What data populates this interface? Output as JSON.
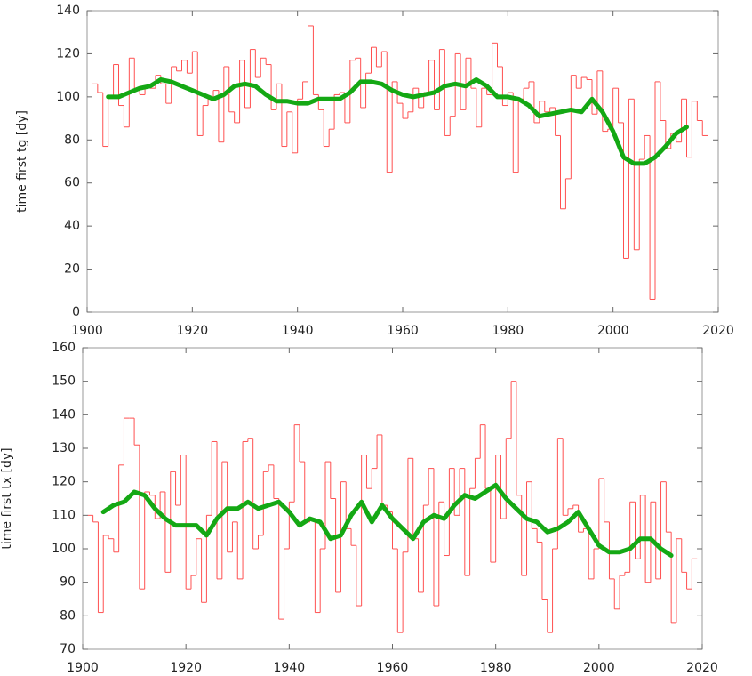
{
  "chart_data": [
    {
      "type": "line",
      "ylabel": "time first tg [dy]",
      "xlim": [
        1900,
        2020
      ],
      "xticks": [
        1900,
        1920,
        1940,
        1960,
        1980,
        2000,
        2020
      ],
      "ylim": [
        0,
        140
      ],
      "yticks": [
        0,
        20,
        40,
        60,
        80,
        100,
        120,
        140
      ],
      "series": [
        {
          "color": "#ff5050",
          "step": true,
          "x": [
            1901,
            1902,
            1903,
            1904,
            1905,
            1906,
            1907,
            1908,
            1909,
            1910,
            1911,
            1912,
            1913,
            1914,
            1915,
            1916,
            1917,
            1918,
            1919,
            1920,
            1921,
            1922,
            1923,
            1924,
            1925,
            1926,
            1927,
            1928,
            1929,
            1930,
            1931,
            1932,
            1933,
            1934,
            1935,
            1936,
            1937,
            1938,
            1939,
            1940,
            1941,
            1942,
            1943,
            1944,
            1945,
            1946,
            1947,
            1948,
            1949,
            1950,
            1951,
            1952,
            1953,
            1954,
            1955,
            1956,
            1957,
            1958,
            1959,
            1960,
            1961,
            1962,
            1963,
            1964,
            1965,
            1966,
            1967,
            1968,
            1969,
            1970,
            1971,
            1972,
            1973,
            1974,
            1975,
            1976,
            1977,
            1978,
            1979,
            1980,
            1981,
            1982,
            1983,
            1984,
            1985,
            1986,
            1987,
            1988,
            1989,
            1990,
            1991,
            1992,
            1993,
            1994,
            1995,
            1996,
            1997,
            1998,
            1999,
            2000,
            2001,
            2002,
            2003,
            2004,
            2005,
            2006,
            2007,
            2008,
            2009,
            2010,
            2011,
            2012,
            2013,
            2014,
            2015,
            2016,
            2017
          ],
          "values": [
            106,
            102,
            77,
            100,
            115,
            96,
            86,
            118,
            104,
            101,
            105,
            104,
            110,
            106,
            97,
            114,
            112,
            117,
            111,
            121,
            82,
            96,
            99,
            103,
            79,
            114,
            93,
            88,
            117,
            95,
            122,
            109,
            118,
            115,
            94,
            106,
            77,
            93,
            74,
            99,
            107,
            133,
            101,
            94,
            77,
            85,
            101,
            102,
            88,
            117,
            118,
            95,
            111,
            123,
            114,
            121,
            65,
            107,
            97,
            90,
            93,
            104,
            95,
            102,
            117,
            94,
            122,
            82,
            91,
            120,
            94,
            118,
            104,
            86,
            104,
            101,
            125,
            114,
            96,
            102,
            65,
            99,
            104,
            107,
            88,
            98,
            93,
            95,
            82,
            48,
            62,
            110,
            104,
            109,
            108,
            92,
            112,
            84,
            85,
            104,
            88,
            25,
            99,
            29,
            71,
            82,
            6,
            107,
            89,
            76,
            83,
            79,
            99,
            72,
            98,
            89,
            82
          ]
        },
        {
          "color": "#14a814",
          "x": [
            1904,
            1906,
            1908,
            1910,
            1912,
            1914,
            1916,
            1918,
            1920,
            1922,
            1924,
            1926,
            1928,
            1930,
            1932,
            1934,
            1936,
            1938,
            1940,
            1942,
            1944,
            1946,
            1948,
            1950,
            1952,
            1954,
            1956,
            1958,
            1960,
            1962,
            1964,
            1966,
            1968,
            1970,
            1972,
            1974,
            1976,
            1978,
            1980,
            1982,
            1984,
            1986,
            1988,
            1990,
            1992,
            1994,
            1996,
            1998,
            2000,
            2002,
            2004,
            2006,
            2008,
            2010,
            2012,
            2014
          ],
          "values": [
            100,
            100,
            102,
            104,
            105,
            108,
            107,
            105,
            103,
            101,
            99,
            101,
            105,
            106,
            105,
            101,
            98,
            98,
            97,
            97,
            99,
            99,
            99,
            102,
            107,
            107,
            106,
            103,
            101,
            100,
            101,
            102,
            105,
            106,
            105,
            108,
            105,
            100,
            100,
            99,
            96,
            91,
            92,
            93,
            94,
            93,
            99,
            93,
            84,
            72,
            69,
            69,
            72,
            77,
            83,
            86
          ]
        }
      ]
    },
    {
      "type": "line",
      "ylabel": "time first tx [dy]",
      "xlim": [
        1900,
        2020
      ],
      "xticks": [
        1900,
        1920,
        1940,
        1960,
        1980,
        2000,
        2020
      ],
      "ylim": [
        70,
        160
      ],
      "yticks": [
        70,
        80,
        90,
        100,
        110,
        120,
        130,
        140,
        150,
        160
      ],
      "series": [
        {
          "color": "#ff5050",
          "step": true,
          "x": [
            1901,
            1902,
            1903,
            1904,
            1905,
            1906,
            1907,
            1908,
            1909,
            1910,
            1911,
            1912,
            1913,
            1914,
            1915,
            1916,
            1917,
            1918,
            1919,
            1920,
            1921,
            1922,
            1923,
            1924,
            1925,
            1926,
            1927,
            1928,
            1929,
            1930,
            1931,
            1932,
            1933,
            1934,
            1935,
            1936,
            1937,
            1938,
            1939,
            1940,
            1941,
            1942,
            1943,
            1944,
            1945,
            1946,
            1947,
            1948,
            1949,
            1950,
            1951,
            1952,
            1953,
            1954,
            1955,
            1956,
            1957,
            1958,
            1959,
            1960,
            1961,
            1962,
            1963,
            1964,
            1965,
            1966,
            1967,
            1968,
            1969,
            1970,
            1971,
            1972,
            1973,
            1974,
            1975,
            1976,
            1977,
            1978,
            1979,
            1980,
            1981,
            1982,
            1983,
            1984,
            1985,
            1986,
            1987,
            1988,
            1989,
            1990,
            1991,
            1992,
            1993,
            1994,
            1995,
            1996,
            1997,
            1998,
            1999,
            2000,
            2001,
            2002,
            2003,
            2004,
            2005,
            2006,
            2007,
            2008,
            2009,
            2010,
            2011,
            2012,
            2013,
            2014,
            2015,
            2016,
            2017,
            2018
          ],
          "values": [
            110,
            108,
            81,
            104,
            103,
            99,
            125,
            139,
            139,
            131,
            88,
            117,
            116,
            109,
            117,
            93,
            123,
            113,
            128,
            88,
            92,
            103,
            84,
            110,
            132,
            91,
            126,
            99,
            108,
            91,
            132,
            133,
            100,
            104,
            123,
            125,
            115,
            79,
            100,
            114,
            137,
            126,
            108,
            109,
            81,
            100,
            126,
            115,
            87,
            120,
            106,
            101,
            83,
            128,
            118,
            124,
            134,
            113,
            111,
            100,
            75,
            99,
            127,
            103,
            87,
            113,
            124,
            83,
            114,
            98,
            124,
            110,
            124,
            92,
            118,
            127,
            137,
            118,
            96,
            128,
            109,
            133,
            150,
            116,
            92,
            120,
            106,
            102,
            85,
            75,
            100,
            133,
            110,
            112,
            113,
            105,
            106,
            91,
            100,
            121,
            108,
            91,
            82,
            92,
            93,
            114,
            97,
            116,
            90,
            114,
            91,
            120,
            105,
            78,
            103,
            93,
            88,
            97
          ]
        },
        {
          "color": "#14a814",
          "x": [
            1904,
            1906,
            1908,
            1910,
            1912,
            1914,
            1916,
            1918,
            1920,
            1922,
            1924,
            1926,
            1928,
            1930,
            1932,
            1934,
            1936,
            1938,
            1940,
            1942,
            1944,
            1946,
            1948,
            1950,
            1952,
            1954,
            1956,
            1958,
            1960,
            1962,
            1964,
            1966,
            1968,
            1970,
            1972,
            1974,
            1976,
            1978,
            1980,
            1982,
            1984,
            1986,
            1988,
            1990,
            1992,
            1994,
            1996,
            1998,
            2000,
            2002,
            2004,
            2006,
            2008,
            2010,
            2012,
            2014
          ],
          "values": [
            111,
            113,
            114,
            117,
            116,
            112,
            109,
            107,
            107,
            107,
            104,
            109,
            112,
            112,
            114,
            112,
            113,
            114,
            111,
            107,
            109,
            108,
            103,
            104,
            110,
            114,
            108,
            113,
            109,
            106,
            103,
            108,
            110,
            109,
            113,
            116,
            115,
            117,
            119,
            115,
            112,
            109,
            108,
            105,
            106,
            108,
            111,
            106,
            101,
            99,
            99,
            100,
            103,
            103,
            100,
            98
          ]
        }
      ]
    }
  ]
}
